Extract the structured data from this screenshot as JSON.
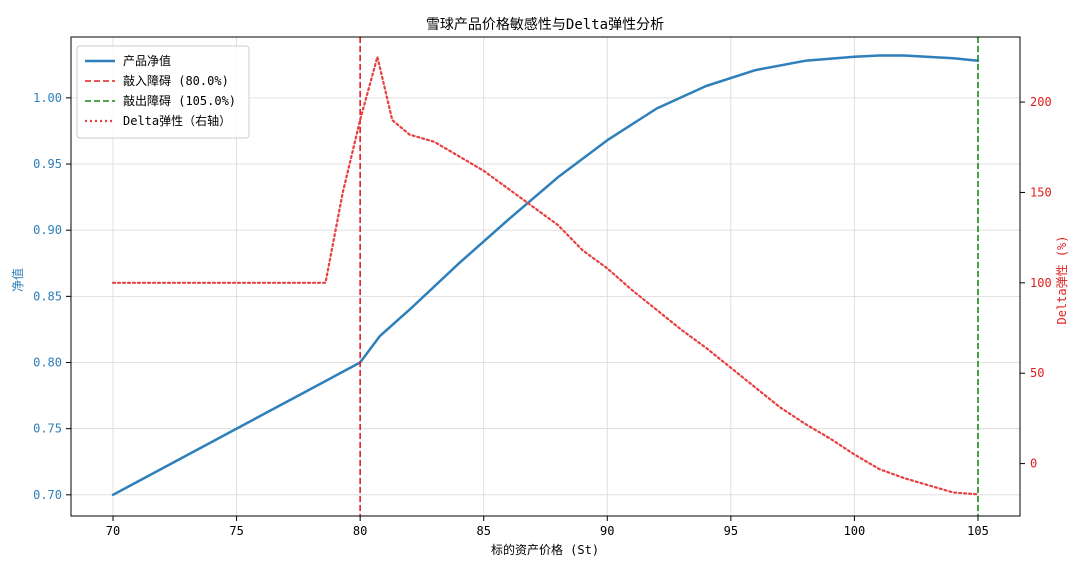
{
  "chart_data": {
    "type": "line",
    "title": "雪球产品价格敏感性与Delta弹性分析",
    "xlabel": "标的资产价格 (St)",
    "ylabel_left": "净值",
    "ylabel_right": "Delta弹性 (%)",
    "xlim": [
      68.3,
      106.7
    ],
    "ylim_left": [
      0.684,
      1.046
    ],
    "ylim_right": [
      -29,
      236
    ],
    "x_ticks": [
      70,
      75,
      80,
      85,
      90,
      95,
      100,
      105
    ],
    "y_ticks_left": [
      0.7,
      0.75,
      0.8,
      0.85,
      0.9,
      0.95,
      1.0
    ],
    "y_ticks_left_labels": [
      "0.70",
      "0.75",
      "0.80",
      "0.85",
      "0.90",
      "0.95",
      "1.00"
    ],
    "y_ticks_right": [
      0,
      50,
      100,
      150,
      200
    ],
    "grid": true,
    "legend_position": "top-left",
    "colors": {
      "nav": "#2e7fba",
      "knock_in": "#e02020",
      "knock_out": "#1a8a1a",
      "delta": "#e84040",
      "left_axis_text": "#2e7fba",
      "right_axis_text": "#e02020"
    },
    "series": [
      {
        "name": "产品净值",
        "axis": "left",
        "style": "solid",
        "x": [
          70,
          72,
          74,
          76,
          78,
          80,
          80.8,
          82,
          84,
          86,
          88,
          90,
          92,
          94,
          96,
          98,
          100,
          101,
          102,
          104,
          105
        ],
        "y": [
          0.7,
          0.72,
          0.74,
          0.76,
          0.78,
          0.8,
          0.82,
          0.84,
          0.875,
          0.908,
          0.94,
          0.968,
          0.992,
          1.009,
          1.021,
          1.028,
          1.031,
          1.032,
          1.032,
          1.03,
          1.028
        ]
      },
      {
        "name": "敲入障碍 (80.0%)",
        "axis": "left",
        "style": "vline-dashed",
        "x": [
          80
        ]
      },
      {
        "name": "敲出障碍 (105.0%)",
        "axis": "left",
        "style": "vline-dashed",
        "x": [
          105
        ]
      },
      {
        "name": "Delta弹性（右轴）",
        "axis": "right",
        "style": "dotted",
        "x": [
          70,
          72,
          74,
          76,
          78,
          78.6,
          79.3,
          80,
          80.7,
          81.3,
          82,
          83,
          84,
          85,
          86,
          87,
          88,
          89,
          90,
          91,
          92,
          93,
          94,
          95,
          96,
          97,
          98,
          99,
          100,
          101,
          102,
          103,
          104,
          105
        ],
        "y": [
          100,
          100,
          100,
          100,
          100,
          100,
          150,
          190,
          225,
          190,
          182,
          178,
          170,
          162,
          152,
          142,
          132,
          118,
          108,
          96,
          85,
          74,
          64,
          53,
          42,
          31,
          22,
          14,
          5,
          -3,
          -8,
          -12,
          -16,
          -17
        ]
      }
    ]
  }
}
